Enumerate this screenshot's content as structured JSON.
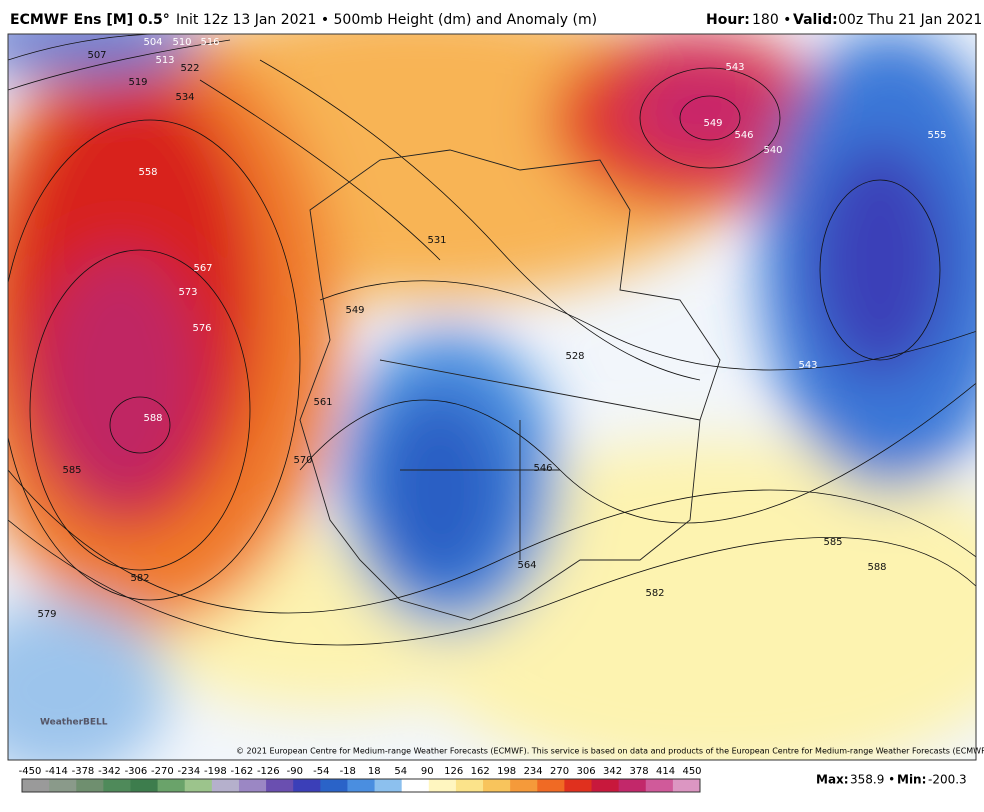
{
  "header": {
    "title_bold": "ECMWF Ens [M] 0.5°",
    "title_rest": "Init 12z 13 Jan 2021 • 500mb Height (dm) and Anomaly (m)",
    "hour_label": "Hour:",
    "hour": "180 •",
    "valid_label": "Valid:",
    "valid": "00z Thu 21 Jan 2021"
  },
  "map": {
    "contour_labels": [
      "507",
      "504",
      "510",
      "513",
      "516",
      "519",
      "522",
      "534",
      "558",
      "567",
      "573",
      "576",
      "588",
      "585",
      "582",
      "579",
      "561",
      "570",
      "549",
      "546",
      "564",
      "528",
      "531",
      "543",
      "549",
      "546",
      "540",
      "555",
      "543",
      "585",
      "588",
      "582"
    ],
    "copyright": "© 2021 European Centre for Medium-range Weather Forecasts (ECMWF). This service is based on data and products of the European Centre for Medium-range Weather Forecasts (ECMWF).",
    "logo": "WeatherBELL"
  },
  "colorbar": {
    "ticks": [
      -450,
      -414,
      -378,
      -342,
      -306,
      -270,
      -234,
      -198,
      -162,
      -126,
      -90,
      -54,
      -18,
      18,
      54,
      90,
      126,
      162,
      198,
      234,
      270,
      306,
      342,
      378,
      414,
      450
    ],
    "colors": [
      "#9a9a9a",
      "#8a9a8a",
      "#6f8f6f",
      "#4f8a5a",
      "#3d7d4d",
      "#6aa36a",
      "#9cc48c",
      "#b5b0cc",
      "#9b87c4",
      "#6a4fb0",
      "#3b3fb8",
      "#2a63c8",
      "#4a8ee0",
      "#8cc0ee",
      "#ffffff",
      "#fff6c0",
      "#fbe38a",
      "#f8c45c",
      "#f59a3a",
      "#f06a24",
      "#e0301e",
      "#c8183c",
      "#c2286a",
      "#d05a9a",
      "#dc96c2"
    ]
  },
  "footer": {
    "max_label": "Max:",
    "max": "358.9 •",
    "min_label": "Min:",
    "min": "-200.3"
  }
}
